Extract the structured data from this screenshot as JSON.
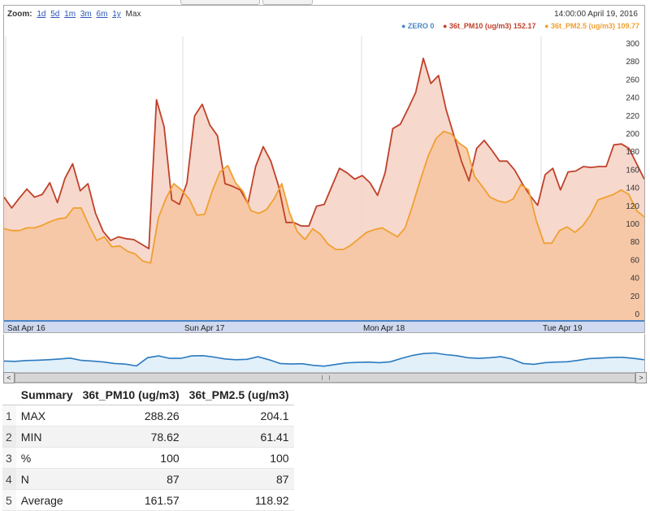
{
  "chart_data": {
    "type": "area",
    "zoom": {
      "label": "Zoom:",
      "options": [
        "1d",
        "5d",
        "1m",
        "3m",
        "6m",
        "1y"
      ],
      "current": "Max"
    },
    "datetime": "14:00:00 April 19, 2016",
    "legend": [
      {
        "text": "ZERO 0",
        "color": "#4a86c8"
      },
      {
        "text": "36t_PM10 (ug/m3) 152.17",
        "color": "#c0412a"
      },
      {
        "text": "36t_PM2.5 (ug/m3) 109.77",
        "color": "#f0a030"
      }
    ],
    "x_labels": [
      "Sat Apr 16",
      "Sun Apr 17",
      "Mon Apr 18",
      "Tue Apr 19"
    ],
    "y_ticks": [
      0,
      20,
      40,
      60,
      80,
      100,
      120,
      140,
      160,
      180,
      200,
      220,
      240,
      260,
      280,
      300
    ],
    "ylim": [
      0,
      300
    ],
    "series": [
      {
        "name": "36t_PM10 (ug/m3)",
        "color": "#c0412a",
        "fill": "#f6d1c4",
        "values": [
          130,
          118,
          129,
          139,
          130,
          133,
          146,
          124,
          151,
          167,
          137,
          145,
          112,
          92,
          82,
          86,
          84,
          83,
          78,
          73,
          238,
          208,
          127,
          122,
          146,
          220,
          233,
          210,
          198,
          145,
          142,
          138,
          123,
          164,
          186,
          170,
          143,
          102,
          102,
          98,
          98,
          120,
          122,
          142,
          162,
          157,
          150,
          154,
          146,
          132,
          157,
          206,
          211,
          228,
          246,
          284,
          256,
          265,
          227,
          199,
          170,
          148,
          184,
          193,
          182,
          170,
          170,
          160,
          145,
          132,
          121,
          155,
          162,
          138,
          158,
          159,
          164,
          163,
          164,
          164,
          188,
          189,
          184,
          167,
          150
        ],
        "x_end": 0.78
      },
      {
        "name": "36t_PM2.5 (ug/m3)",
        "color": "#f0a030",
        "fill": "#f7c6a0",
        "values": [
          95,
          93,
          93,
          96,
          96,
          99,
          103,
          106,
          107,
          118,
          118,
          99,
          82,
          86,
          75,
          76,
          70,
          67,
          59,
          57,
          107,
          129,
          145,
          138,
          128,
          110,
          111,
          137,
          158,
          165,
          146,
          136,
          115,
          112,
          116,
          128,
          145,
          113,
          92,
          83,
          95,
          89,
          78,
          72,
          72,
          77,
          84,
          91,
          94,
          96,
          91,
          86,
          96,
          122,
          150,
          176,
          195,
          203,
          200,
          190,
          184,
          153,
          142,
          130,
          126,
          124,
          128,
          144,
          138,
          104,
          79,
          79,
          93,
          97,
          91,
          98,
          110,
          127,
          130,
          133,
          138,
          133,
          115,
          108
        ],
        "x_end": 0.78
      },
      {
        "name": "ZERO",
        "color": "#4a86c8",
        "values": [
          0,
          0
        ]
      }
    ],
    "navigator": {
      "color": "#2a7ac0",
      "fill": "#e2f0fa",
      "values": [
        130,
        128,
        134,
        136,
        140,
        145,
        152,
        135,
        130,
        123,
        112,
        107,
        94,
        155,
        168,
        150,
        150,
        168,
        170,
        160,
        146,
        140,
        143,
        162,
        140,
        112,
        108,
        110,
        98,
        92,
        104,
        116,
        120,
        122,
        118,
        125,
        150,
        172,
        186,
        190,
        178,
        170,
        155,
        150,
        155,
        162,
        145,
        112,
        106,
        118,
        122,
        125,
        135,
        148,
        152,
        156,
        158,
        150,
        140
      ]
    }
  },
  "summary": {
    "headers": [
      "Summary",
      "36t_PM10 (ug/m3)",
      "36t_PM2.5 (ug/m3)"
    ],
    "rows": [
      {
        "idx": "1",
        "label": "MAX",
        "pm10": "288.26",
        "pm25": "204.1"
      },
      {
        "idx": "2",
        "label": "MIN",
        "pm10": "78.62",
        "pm25": "61.41"
      },
      {
        "idx": "3",
        "label": "%",
        "pm10": "100",
        "pm25": "100"
      },
      {
        "idx": "4",
        "label": "N",
        "pm10": "87",
        "pm25": "87"
      },
      {
        "idx": "5",
        "label": "Average",
        "pm10": "161.57",
        "pm25": "118.92"
      }
    ]
  },
  "scrollbar": {
    "left_arrow": "<",
    "right_arrow": ">",
    "grip": "|||"
  }
}
